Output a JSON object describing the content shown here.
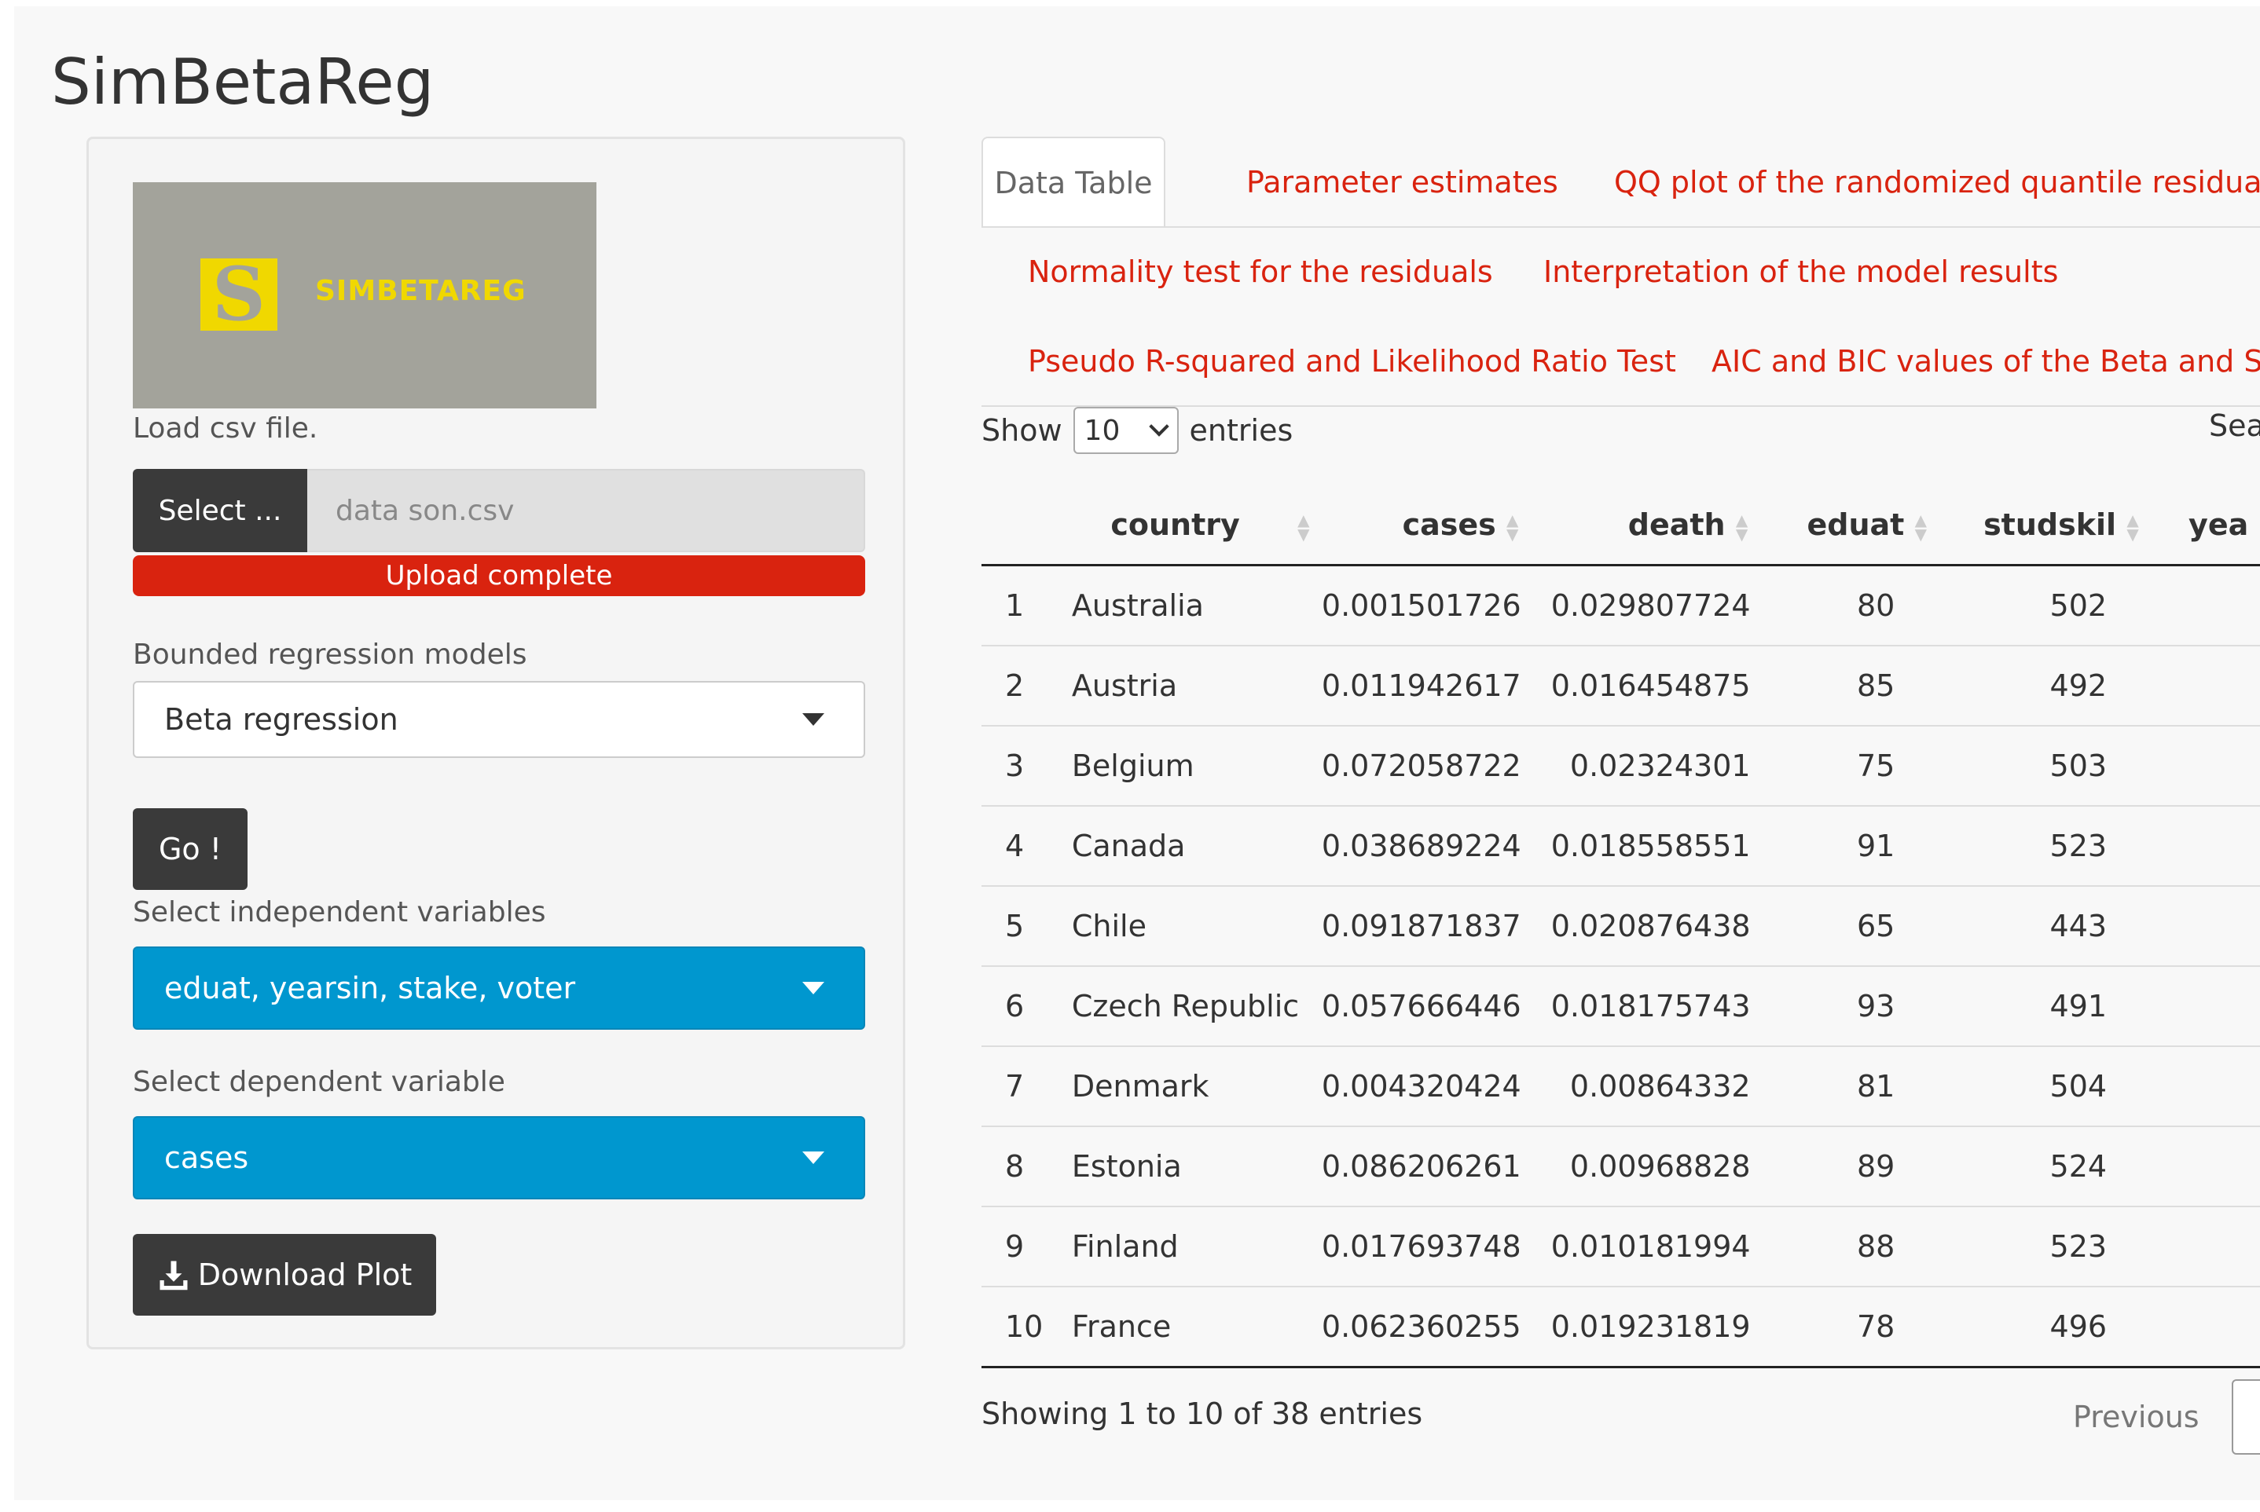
{
  "app": {
    "title": "SimBetaReg"
  },
  "sidebar": {
    "logo": {
      "letter": "S",
      "text": "SIMBETAREG"
    },
    "file": {
      "label": "Load csv file.",
      "button_label": "Select ...",
      "file_name": "data son.csv",
      "progress_text": "Upload complete"
    },
    "model": {
      "label": "Bounded regression models",
      "selected": "Beta regression"
    },
    "go_label": "Go !",
    "independent": {
      "label": "Select independent variables",
      "selected": "eduat, yearsin, stake, voter"
    },
    "dependent": {
      "label": "Select dependent variable",
      "selected": "cases"
    },
    "download_label": "Download Plot"
  },
  "tabs": [
    {
      "label": "Data Table",
      "active": true
    },
    {
      "label": "Parameter estimates"
    },
    {
      "label": "QQ plot of the randomized quantile residuals"
    },
    {
      "label": "Normality test for the residuals"
    },
    {
      "label": "Interpretation of the model results"
    },
    {
      "label": "Pseudo R-squared and Likelihood Ratio Test"
    },
    {
      "label": "AIC and BIC values of the Beta and Sim"
    }
  ],
  "datatable": {
    "show_label": "Show",
    "length_value": "10",
    "entries_label": "entries",
    "search_label": "Sear",
    "columns": [
      "",
      "country",
      "cases",
      "death",
      "eduat",
      "studskil",
      "yea"
    ],
    "rows": [
      [
        "1",
        "Australia",
        "0.001501726",
        "0.029807724",
        "80",
        "502"
      ],
      [
        "2",
        "Austria",
        "0.011942617",
        "0.016454875",
        "85",
        "492"
      ],
      [
        "3",
        "Belgium",
        "0.072058722",
        "0.02324301",
        "75",
        "503"
      ],
      [
        "4",
        "Canada",
        "0.038689224",
        "0.018558551",
        "91",
        "523"
      ],
      [
        "5",
        "Chile",
        "0.091871837",
        "0.020876438",
        "65",
        "443"
      ],
      [
        "6",
        "Czech Republic",
        "0.057666446",
        "0.018175743",
        "93",
        "491"
      ],
      [
        "7",
        "Denmark",
        "0.004320424",
        "0.00864332",
        "81",
        "504"
      ],
      [
        "8",
        "Estonia",
        "0.086206261",
        "0.00968828",
        "89",
        "524"
      ],
      [
        "9",
        "Finland",
        "0.017693748",
        "0.010181994",
        "88",
        "523"
      ],
      [
        "10",
        "France",
        "0.062360255",
        "0.019231819",
        "78",
        "496"
      ]
    ],
    "info": "Showing 1 to 10 of 38 entries",
    "previous_label": "Previous"
  },
  "colors": {
    "accent_red": "#d9230f",
    "select_blue": "#0097cf",
    "dark_button": "#3a3a3a",
    "logo_bg": "#a3a39b",
    "logo_yellow": "#f0d800"
  }
}
